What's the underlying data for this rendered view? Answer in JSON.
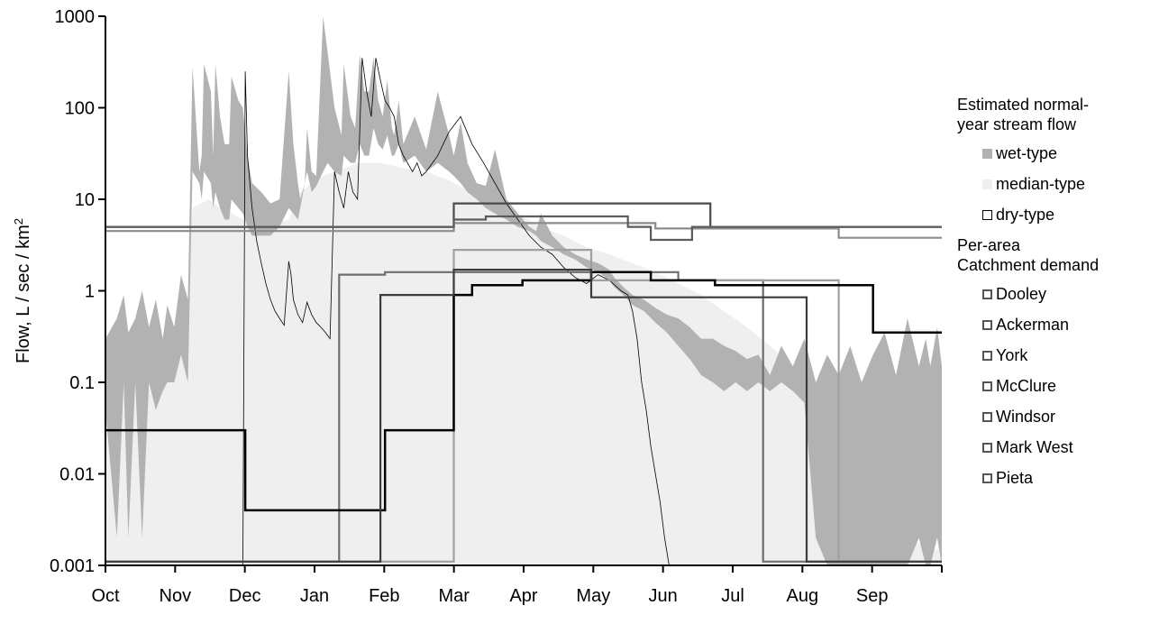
{
  "chart_data": {
    "type": "area",
    "ylabel": "Flow, L / sec / km",
    "ylabel_superscript": "2",
    "yscale": "log",
    "ylim": [
      0.001,
      1000
    ],
    "yticks": [
      "0.001",
      "0.01",
      "0.1",
      "1",
      "10",
      "100",
      "1000"
    ],
    "x_ticks": [
      "Oct",
      "Nov",
      "Dec",
      "Jan",
      "Feb",
      "Mar",
      "Apr",
      "May",
      "Jun",
      "Jul",
      "Aug",
      "Sep"
    ],
    "x_range_days": [
      0,
      365
    ],
    "legend": {
      "flow_title": "Estimated normal-year stream flow",
      "flow_title_line1": "Estimated normal-",
      "flow_title_line2": "year stream flow",
      "flow_items": [
        "wet-type",
        "median-type",
        "dry-type"
      ],
      "demand_title_line1": "Per-area",
      "demand_title_line2": "Catchment demand",
      "demand_items": [
        "Dooley",
        "Ackerman",
        "York",
        "McClure",
        "Windsor",
        "Mark West",
        "Pieta"
      ]
    },
    "colors": {
      "wet": "#b2b2b2",
      "median": "#efefef",
      "dry": "#000000",
      "Dooley": "#6e6e6e",
      "Ackerman": "#4a4a4a",
      "York": "#8c8c8c",
      "McClure": "#5c5c5c",
      "Windsor": "#a0a0a0",
      "Mark West": "#000000",
      "Pieta": "#3c3c3c"
    },
    "wet": {
      "x": [
        0,
        5,
        8,
        10,
        13,
        16,
        19,
        22,
        25,
        27,
        30,
        33,
        36,
        38,
        41,
        42,
        43,
        46,
        47,
        48,
        50,
        52,
        54,
        55,
        58,
        60,
        62,
        64,
        68,
        72,
        76,
        80,
        82,
        84,
        85,
        87,
        88,
        90,
        92,
        95,
        97,
        100,
        103,
        104,
        107,
        109,
        111,
        113,
        115,
        117,
        119,
        121,
        123,
        125,
        126,
        128,
        130,
        135,
        140,
        145,
        150,
        152,
        155,
        158,
        162,
        166,
        170,
        175,
        180,
        185,
        188,
        190,
        195,
        200,
        205,
        210,
        215,
        220,
        222,
        226,
        230,
        235,
        240,
        245,
        250,
        255,
        260,
        265,
        270,
        275,
        280,
        285,
        290,
        295,
        300,
        305,
        310,
        315,
        320,
        325,
        330,
        335,
        340,
        345,
        350,
        355,
        358,
        360,
        363,
        365
      ],
      "upper": [
        0.3,
        0.5,
        0.9,
        0.35,
        0.5,
        1.0,
        0.4,
        0.8,
        0.3,
        0.7,
        0.4,
        1.5,
        0.8,
        280,
        20,
        30,
        300,
        150,
        30,
        300,
        80,
        40,
        40,
        220,
        120,
        100,
        30,
        15,
        12,
        9,
        10,
        250,
        40,
        15,
        10,
        15,
        60,
        20,
        18,
        1000,
        400,
        100,
        50,
        300,
        80,
        60,
        380,
        150,
        150,
        350,
        120,
        80,
        200,
        60,
        50,
        120,
        40,
        80,
        35,
        150,
        50,
        30,
        70,
        25,
        15,
        14,
        35,
        10,
        7,
        5,
        4.5,
        7,
        4,
        3,
        2.5,
        2.2,
        2.0,
        1.7,
        1.4,
        1.1,
        0.9,
        0.8,
        0.65,
        0.55,
        0.5,
        0.4,
        0.3,
        0.3,
        0.25,
        0.22,
        0.18,
        0.2,
        0.12,
        0.25,
        0.15,
        0.3,
        0.1,
        0.2,
        0.12,
        0.25,
        0.1,
        0.2,
        0.35,
        0.12,
        0.5,
        0.15,
        0.3,
        0.15,
        0.4,
        0.15
      ],
      "lower": [
        0.05,
        0.002,
        0.1,
        0.002,
        0.1,
        0.002,
        0.1,
        0.05,
        0.08,
        0.1,
        0.1,
        0.2,
        0.1,
        20,
        15,
        10,
        20,
        15,
        8,
        12,
        8,
        6,
        6,
        10,
        8,
        7,
        5,
        4,
        4,
        4,
        5,
        8,
        7,
        6,
        8,
        15,
        20,
        12,
        14,
        20,
        25,
        20,
        18,
        30,
        25,
        25,
        40,
        30,
        30,
        60,
        40,
        35,
        50,
        30,
        30,
        40,
        25,
        30,
        20,
        25,
        20,
        18,
        15,
        12,
        10,
        8,
        7,
        6,
        5,
        4.5,
        4,
        3.5,
        3,
        2.5,
        2.2,
        1.8,
        1.6,
        1.3,
        1.1,
        0.9,
        0.7,
        0.6,
        0.45,
        0.35,
        0.25,
        0.18,
        0.12,
        0.1,
        0.08,
        0.1,
        0.08,
        0.1,
        0.08,
        0.1,
        0.08,
        0.06,
        0.002,
        0.001,
        0.001,
        0.001,
        0.001,
        0.001,
        0.001,
        0.001,
        0.001,
        0.002,
        0.001,
        0.001,
        0.002,
        0.001
      ]
    },
    "median": {
      "x": [
        0,
        5,
        10,
        15,
        20,
        25,
        30,
        35,
        38,
        45,
        50,
        55,
        60,
        65,
        70,
        80,
        85,
        90,
        95,
        100,
        105,
        110,
        120,
        130,
        140,
        150,
        160,
        170,
        180,
        190,
        200,
        210,
        220,
        230,
        240,
        250,
        260,
        270,
        280,
        290,
        300,
        305,
        310,
        320,
        330,
        340,
        350,
        360,
        365
      ],
      "upper": [
        0.15,
        0.2,
        0.15,
        0.25,
        0.2,
        0.15,
        0.2,
        0.3,
        8,
        10,
        8,
        7,
        6,
        5,
        5,
        6,
        12,
        15,
        18,
        20,
        22,
        25,
        25,
        22,
        20,
        16,
        12,
        9,
        7,
        5,
        4,
        3,
        2.5,
        2,
        1.6,
        1.2,
        0.9,
        0.6,
        0.4,
        0.25,
        0.15,
        0.08,
        0.05,
        0.01,
        0.005,
        0.003,
        0.002,
        0.0015,
        0.0015
      ]
    },
    "dry": {
      "x": [
        60,
        61,
        62,
        64,
        66,
        68,
        70,
        72,
        74,
        76,
        78,
        80,
        81,
        82,
        84,
        86,
        88,
        90,
        92,
        94,
        96,
        98,
        100,
        102,
        104,
        106,
        108,
        110,
        112,
        114,
        116,
        118,
        120,
        122,
        124,
        126,
        128,
        130,
        134,
        136,
        138,
        140,
        145,
        150,
        155,
        160,
        165,
        170,
        175,
        180,
        185,
        190,
        195,
        200,
        205,
        210,
        215,
        220,
        225,
        228,
        230,
        232,
        234,
        236,
        238,
        240,
        242,
        244,
        246,
        248
      ],
      "y": [
        0.001,
        250,
        30,
        8,
        3.5,
        2,
        1.2,
        0.8,
        0.6,
        0.5,
        0.42,
        2.1,
        1.5,
        0.8,
        0.55,
        0.45,
        0.75,
        0.55,
        0.45,
        0.4,
        0.35,
        0.3,
        20,
        12,
        8,
        20,
        12,
        10,
        350,
        150,
        80,
        350,
        200,
        120,
        100,
        80,
        40,
        30,
        20,
        25,
        18,
        20,
        30,
        55,
        80,
        40,
        25,
        15,
        9,
        6,
        4,
        3,
        2.5,
        1.8,
        1.4,
        1.2,
        1.5,
        1.3,
        1.0,
        0.9,
        0.6,
        0.3,
        0.1,
        0.05,
        0.02,
        0.01,
        0.005,
        0.002,
        0.001,
        0.001
      ]
    },
    "demand": [
      {
        "name": "Dooley",
        "x": [
          0,
          102,
          102,
          122,
          122,
          250,
          250,
          287,
          287,
          365
        ],
        "y": [
          0.0011,
          0.0011,
          1.5,
          1.5,
          1.6,
          1.6,
          1.3,
          1.3,
          0.0011,
          0.0011
        ]
      },
      {
        "name": "Ackerman",
        "x": [
          0,
          152,
          152,
          197,
          197,
          264,
          264,
          300,
          300,
          365
        ],
        "y": [
          5,
          5,
          9,
          9,
          9,
          9,
          5,
          5,
          5,
          5
        ]
      },
      {
        "name": "York",
        "x": [
          0,
          152,
          152,
          240,
          240,
          320,
          320,
          365
        ],
        "y": [
          4.5,
          4.5,
          5.5,
          5.5,
          4.8,
          4.8,
          3.8,
          3.8
        ]
      },
      {
        "name": "McClure",
        "x": [
          0,
          92,
          92,
          152,
          152,
          166,
          166,
          228,
          228,
          238,
          238,
          256,
          256,
          365
        ],
        "y": [
          5,
          5,
          5,
          5,
          6,
          6,
          6.5,
          6.5,
          5,
          5,
          3.6,
          3.6,
          5,
          5
        ]
      },
      {
        "name": "Windsor",
        "x": [
          0,
          152,
          152,
          182,
          182,
          212,
          212,
          320,
          320,
          365
        ],
        "y": [
          0.0011,
          0.0011,
          2.8,
          2.8,
          2.8,
          2.8,
          1.3,
          1.3,
          0.0011,
          0.0011
        ]
      },
      {
        "name": "Mark West",
        "x": [
          0,
          61,
          61,
          122,
          122,
          152,
          152,
          160,
          160,
          182,
          182,
          212,
          212,
          238,
          238,
          266,
          266,
          335,
          335,
          365
        ],
        "y": [
          0.03,
          0.03,
          0.004,
          0.004,
          0.03,
          0.03,
          0.9,
          0.9,
          1.15,
          1.15,
          1.3,
          1.3,
          1.6,
          1.6,
          1.3,
          1.3,
          1.15,
          1.15,
          0.35,
          0.35
        ]
      },
      {
        "name": "Pieta",
        "x": [
          0,
          120,
          120,
          152,
          152,
          212,
          212,
          306,
          306,
          365
        ],
        "y": [
          0.0011,
          0.0011,
          0.9,
          0.9,
          1.7,
          1.7,
          0.85,
          0.85,
          0.0011,
          0.0011
        ]
      }
    ]
  }
}
